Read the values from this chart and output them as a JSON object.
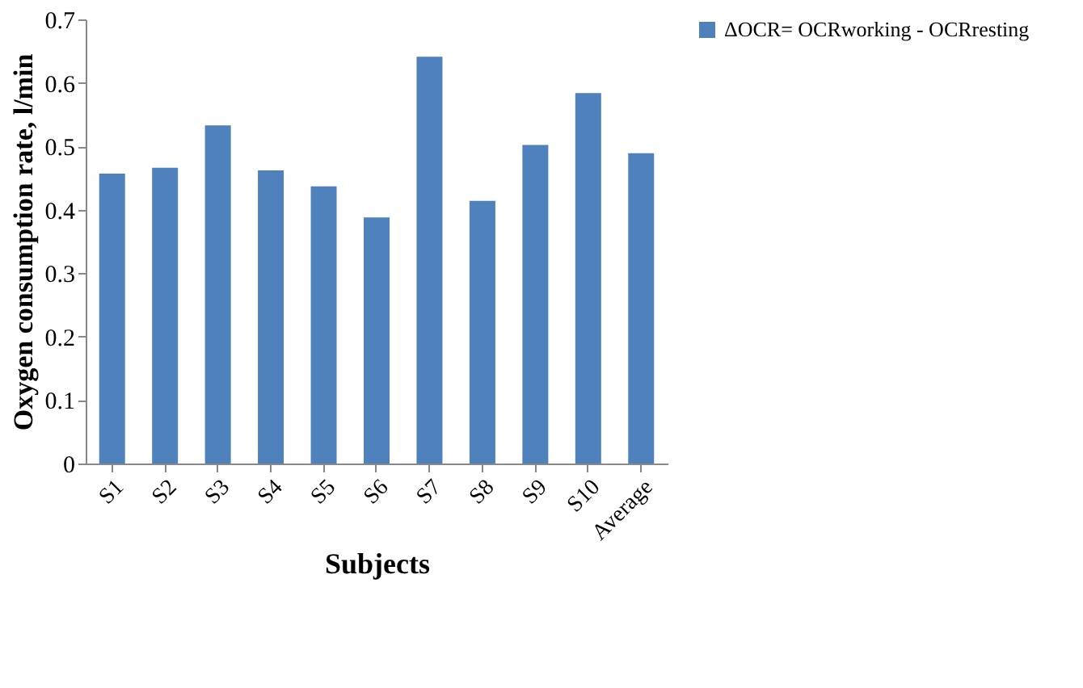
{
  "chart_data": {
    "type": "bar",
    "xlabel": "Subjects",
    "ylabel": "Oxygen consumption rate, l/min",
    "categories": [
      "S1",
      "S2",
      "S3",
      "S4",
      "S5",
      "S6",
      "S7",
      "S8",
      "S9",
      "S10",
      "Average"
    ],
    "series": [
      {
        "name": "ΔOCR= OCRworking - OCRresting",
        "color": "#4f81bd",
        "values": [
          0.457,
          0.466,
          0.533,
          0.462,
          0.437,
          0.388,
          0.641,
          0.414,
          0.502,
          0.584,
          0.489
        ]
      }
    ],
    "ylim": [
      0,
      0.7
    ],
    "yticks": [
      0,
      0.1,
      0.2,
      0.3,
      0.4,
      0.5,
      0.6,
      0.7
    ],
    "grid": false,
    "legend": "right"
  }
}
